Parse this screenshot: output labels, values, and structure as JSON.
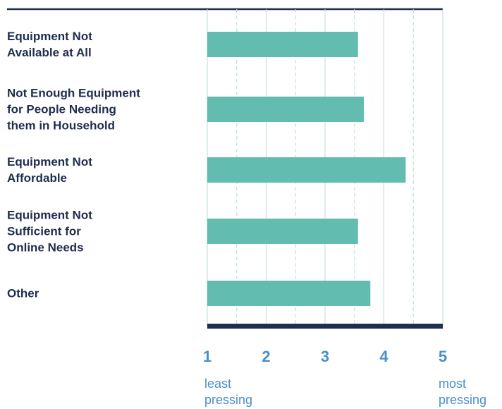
{
  "chart_data": {
    "type": "bar",
    "orientation": "horizontal",
    "categories": [
      "Equipment Not\nAvailable at All",
      "Not Enough Equipment\nfor People Needing\nthem in Household",
      "Equipment Not\nAffordable",
      "Equipment Not\nSufficient for\nOnline Needs",
      "Other"
    ],
    "values": [
      3.56,
      3.66,
      4.37,
      3.56,
      3.77
    ],
    "color": "#62bcb0",
    "xlim": [
      1,
      5
    ],
    "xticks": [
      1,
      2,
      3,
      4,
      5
    ],
    "grid": true,
    "annotations": [
      "least pressing",
      "most pressing"
    ]
  }
}
